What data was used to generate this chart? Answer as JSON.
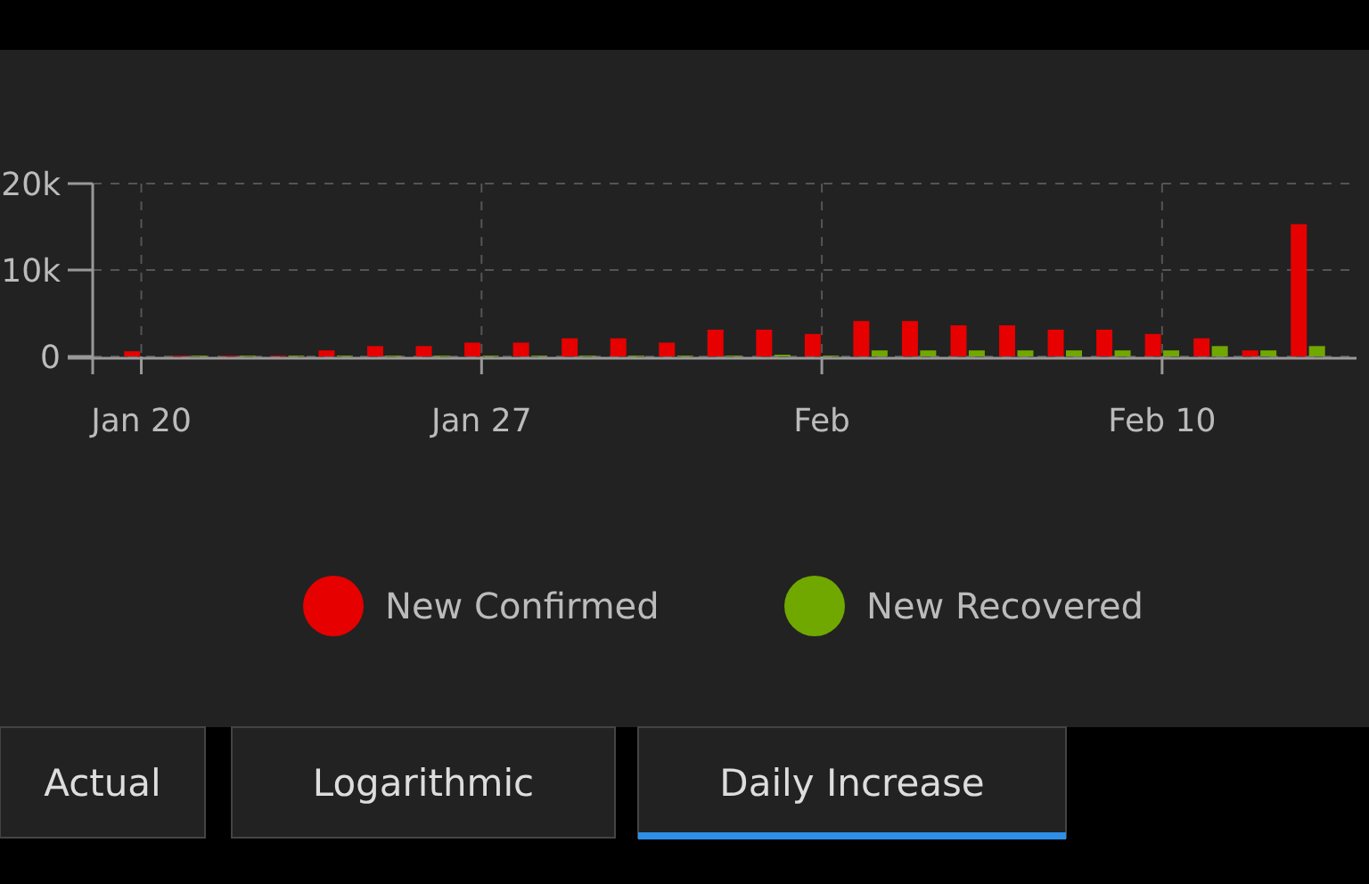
{
  "chart_data": {
    "type": "bar",
    "x": [
      "--01-20",
      "--01-21",
      "--01-22",
      "--01-23",
      "--01-24",
      "--01-25",
      "--01-26",
      "--01-27",
      "--01-28",
      "--01-29",
      "--01-30",
      "--01-31",
      "--02-01",
      "--02-02",
      "--02-03",
      "--02-04",
      "--02-05",
      "--02-06",
      "--02-07",
      "--02-08",
      "--02-09",
      "--02-10",
      "--02-11",
      "--02-12",
      "--02-13"
    ],
    "series": [
      {
        "name": "New Confirmed",
        "color": "#e60000",
        "values": [
          600,
          100,
          100,
          100,
          700,
          1200,
          1200,
          1600,
          1600,
          2100,
          2100,
          1600,
          3100,
          3100,
          2600,
          4100,
          4100,
          3600,
          3600,
          3100,
          3100,
          2600,
          2100,
          700,
          15300
        ]
      },
      {
        "name": "New Recovered",
        "color": "#70a800",
        "values": [
          0,
          100,
          100,
          100,
          100,
          100,
          100,
          100,
          100,
          100,
          100,
          100,
          100,
          200,
          100,
          700,
          700,
          700,
          700,
          700,
          700,
          700,
          1200,
          700,
          1200
        ]
      }
    ],
    "xlim": [
      "--01-19",
      "--02-14"
    ],
    "xticks": [
      {
        "value": "--01-20",
        "label": "Jan 20"
      },
      {
        "value": "--01-27",
        "label": "Jan 27"
      },
      {
        "value": "--02-03",
        "label": "Feb"
      },
      {
        "value": "--02-10",
        "label": "Feb 10"
      }
    ],
    "ylim": [
      0,
      20000
    ],
    "yticks": [
      {
        "value": 0,
        "label": "0"
      },
      {
        "value": 10000,
        "label": "10k"
      },
      {
        "value": 20000,
        "label": "20k"
      }
    ],
    "grid": true,
    "legend": "bottom",
    "annotations": [
      "Actual",
      "Logarithmic",
      "Daily Increase"
    ]
  }
}
